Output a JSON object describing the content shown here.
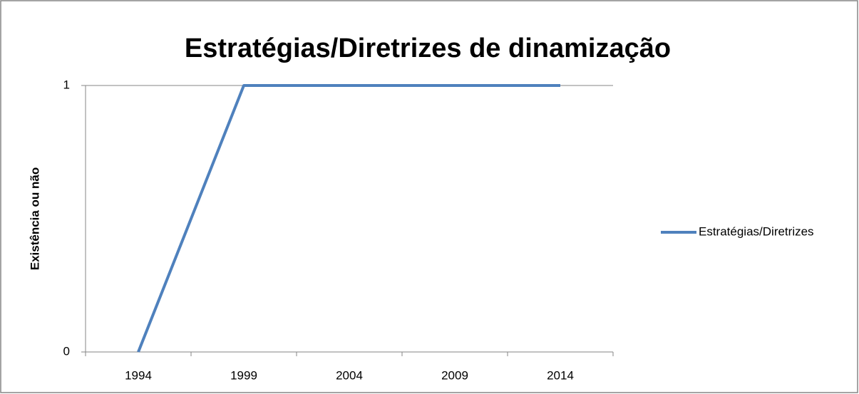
{
  "chart_data": {
    "type": "line",
    "title": "Estratégias/Diretrizes de dinamização",
    "y_label": "Existência ou não",
    "categories": [
      "1994",
      "1999",
      "2004",
      "2009",
      "2014"
    ],
    "series": [
      {
        "name": "Estratégias/Diretrizes",
        "color": "#4f81bd",
        "values": [
          0,
          1,
          1,
          1,
          1
        ]
      }
    ],
    "ylim": [
      0,
      1
    ],
    "yticks": [
      0,
      1
    ],
    "grid": true,
    "legend": "right"
  }
}
